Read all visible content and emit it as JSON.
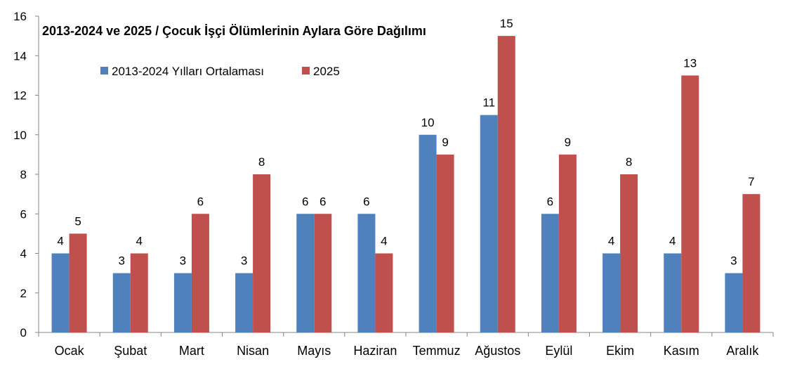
{
  "chart_data": {
    "type": "bar",
    "title": "2013-2024 ve 2025 / Çocuk İşçi Ölümlerinin Aylara Göre Dağılımı",
    "xlabel": "",
    "ylabel": "",
    "categories": [
      "Ocak",
      "Şubat",
      "Mart",
      "Nisan",
      "Mayıs",
      "Haziran",
      "Temmuz",
      "Ağustos",
      "Eylül",
      "Ekim",
      "Kasım",
      "Aralık"
    ],
    "series": [
      {
        "name": "2013-2024 Yılları Ortalaması",
        "color": "#4F81BD",
        "values": [
          4,
          3,
          3,
          3,
          6,
          6,
          10,
          11,
          6,
          4,
          4,
          3
        ]
      },
      {
        "name": "2025",
        "color": "#C0504D",
        "values": [
          5,
          4,
          6,
          8,
          6,
          4,
          9,
          15,
          9,
          8,
          13,
          7
        ]
      }
    ],
    "ylim": [
      0,
      16
    ],
    "yticks": [
      0,
      2,
      4,
      6,
      8,
      10,
      12,
      14,
      16
    ],
    "grid": false,
    "legend_position": "top-left",
    "data_labels": true
  }
}
